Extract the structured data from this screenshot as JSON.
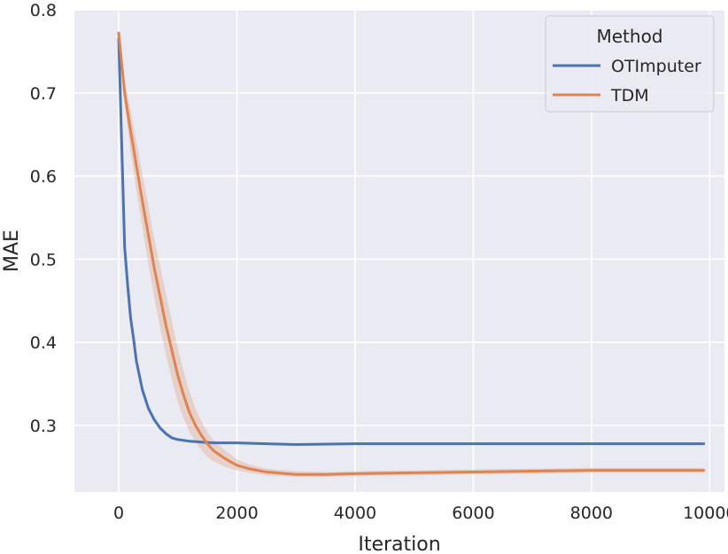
{
  "chart_data": {
    "type": "line",
    "title": "",
    "xlabel": "Iteration",
    "ylabel": "MAE",
    "xlim": [
      -750,
      10250
    ],
    "ylim": [
      0.22,
      0.8
    ],
    "xticks": [
      0,
      2000,
      4000,
      6000,
      8000,
      10000
    ],
    "yticks": [
      0.3,
      0.4,
      0.5,
      0.6,
      0.7,
      0.8
    ],
    "xtick_labels": [
      "0",
      "2000",
      "4000",
      "6000",
      "8000",
      "10000"
    ],
    "ytick_labels": [
      "0.3",
      "0.4",
      "0.5",
      "0.6",
      "0.7",
      "0.8"
    ],
    "grid": true,
    "legend": {
      "title": "Method",
      "position": "top-right",
      "entries": [
        "OTImputer",
        "TDM"
      ]
    },
    "series": [
      {
        "name": "OTImputer",
        "color": "#4c72b0",
        "x": [
          0,
          50,
          100,
          150,
          200,
          250,
          300,
          350,
          400,
          450,
          500,
          600,
          700,
          800,
          900,
          1000,
          1200,
          1400,
          1600,
          2000,
          2500,
          3000,
          4000,
          5000,
          6000,
          7000,
          8000,
          9000,
          9900
        ],
        "y": [
          0.765,
          0.64,
          0.515,
          0.47,
          0.43,
          0.405,
          0.377,
          0.36,
          0.343,
          0.332,
          0.321,
          0.307,
          0.297,
          0.29,
          0.285,
          0.283,
          0.281,
          0.28,
          0.279,
          0.279,
          0.278,
          0.277,
          0.278,
          0.278,
          0.278,
          0.278,
          0.278,
          0.278,
          0.278
        ]
      },
      {
        "name": "TDM",
        "color": "#dd8452",
        "x": [
          0,
          100,
          200,
          300,
          400,
          500,
          600,
          700,
          800,
          900,
          1000,
          1100,
          1200,
          1300,
          1400,
          1500,
          1600,
          1800,
          2000,
          2200,
          2500,
          3000,
          3500,
          4000,
          5000,
          6000,
          7000,
          8000,
          9000,
          9900
        ],
        "y": [
          0.772,
          0.7,
          0.655,
          0.612,
          0.57,
          0.53,
          0.49,
          0.455,
          0.42,
          0.39,
          0.36,
          0.336,
          0.315,
          0.3,
          0.288,
          0.278,
          0.27,
          0.26,
          0.252,
          0.248,
          0.244,
          0.241,
          0.241,
          0.242,
          0.243,
          0.244,
          0.245,
          0.246,
          0.246,
          0.246
        ],
        "band_lower": [
          0.772,
          0.685,
          0.63,
          0.582,
          0.538,
          0.495,
          0.455,
          0.418,
          0.385,
          0.355,
          0.328,
          0.308,
          0.292,
          0.28,
          0.27,
          0.262,
          0.257,
          0.25,
          0.246,
          0.243,
          0.24,
          0.238,
          0.238,
          0.239,
          0.24,
          0.241,
          0.242,
          0.243,
          0.243,
          0.243
        ],
        "band_upper": [
          0.772,
          0.715,
          0.68,
          0.642,
          0.602,
          0.565,
          0.525,
          0.492,
          0.458,
          0.425,
          0.392,
          0.365,
          0.34,
          0.32,
          0.305,
          0.292,
          0.283,
          0.27,
          0.259,
          0.253,
          0.248,
          0.245,
          0.244,
          0.245,
          0.246,
          0.247,
          0.248,
          0.249,
          0.249,
          0.249
        ]
      }
    ]
  },
  "style": {
    "background": "#eaeaf2",
    "grid_color": "#ffffff",
    "band_opacity": 0.25
  }
}
